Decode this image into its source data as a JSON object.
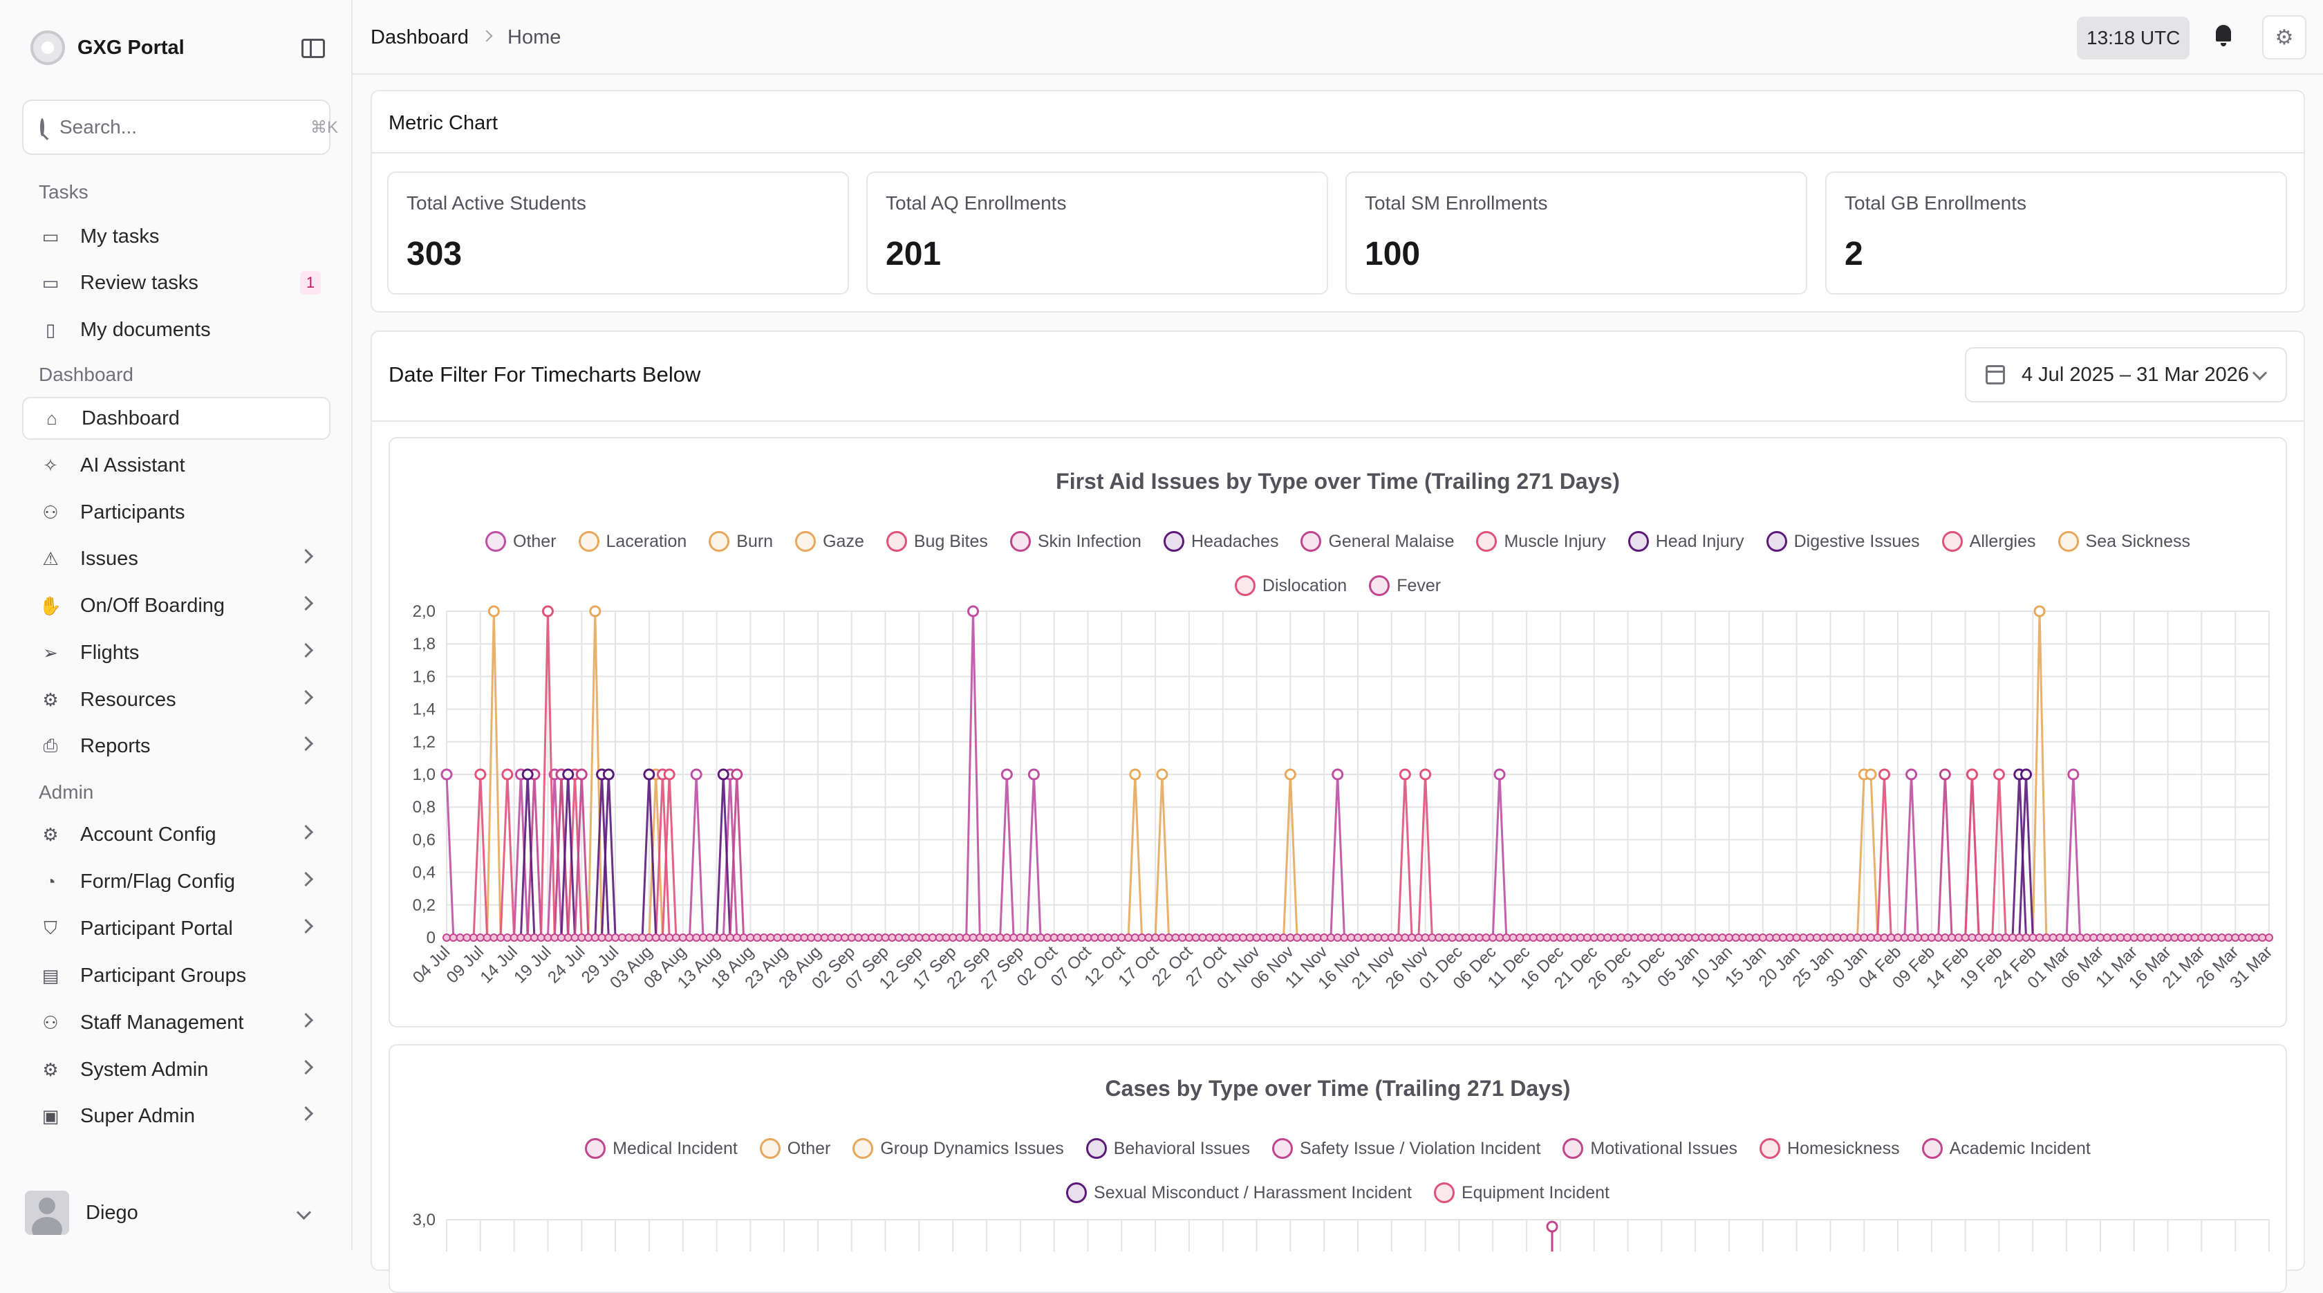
{
  "brand": {
    "name": "GXG Portal"
  },
  "search": {
    "placeholder": "Search...",
    "shortcut": "⌘K"
  },
  "sidebar": {
    "sections": {
      "tasks": "Tasks",
      "dashboard": "Dashboard",
      "admin": "Admin"
    },
    "tasks": [
      {
        "label": "My tasks",
        "icon": "clipboard-icon"
      },
      {
        "label": "Review tasks",
        "icon": "clipboard-check-icon",
        "badge": "1"
      },
      {
        "label": "My documents",
        "icon": "document-icon"
      }
    ],
    "dashboard": [
      {
        "label": "Dashboard",
        "icon": "home-icon",
        "active": true
      },
      {
        "label": "AI Assistant",
        "icon": "sparkles-icon"
      },
      {
        "label": "Participants",
        "icon": "users-icon"
      },
      {
        "label": "Issues",
        "icon": "warning-icon",
        "chevron": true
      },
      {
        "label": "On/Off Boarding",
        "icon": "hand-icon",
        "chevron": true
      },
      {
        "label": "Flights",
        "icon": "send-icon",
        "chevron": true
      },
      {
        "label": "Resources",
        "icon": "gear-icon",
        "chevron": true
      },
      {
        "label": "Reports",
        "icon": "printer-icon",
        "chevron": true
      }
    ],
    "admin": [
      {
        "label": "Account Config",
        "icon": "gear-icon",
        "chevron": true
      },
      {
        "label": "Form/Flag Config",
        "icon": "cookie-icon",
        "chevron": true
      },
      {
        "label": "Participant Portal",
        "icon": "shield-icon",
        "chevron": true
      },
      {
        "label": "Participant Groups",
        "icon": "groups-icon"
      },
      {
        "label": "Staff Management",
        "icon": "users-icon",
        "chevron": true
      },
      {
        "label": "System Admin",
        "icon": "gear-icon",
        "chevron": true
      },
      {
        "label": "Super Admin",
        "icon": "terminal-icon",
        "chevron": true
      }
    ],
    "user": {
      "name": "Diego"
    }
  },
  "header": {
    "breadcrumb": [
      "Dashboard",
      "Home"
    ],
    "clock": "13:18 UTC"
  },
  "metrics": {
    "title": "Metric Chart",
    "cards": [
      {
        "label": "Total Active Students",
        "value": "303"
      },
      {
        "label": "Total AQ Enrollments",
        "value": "201"
      },
      {
        "label": "Total SM Enrollments",
        "value": "100"
      },
      {
        "label": "Total GB Enrollments",
        "value": "2"
      }
    ]
  },
  "date_filter": {
    "title": "Date Filter For Timecharts Below",
    "range": "4 Jul 2025 – 31 Mar 2026"
  },
  "chart_data": [
    {
      "type": "line",
      "title": "First Aid Issues by Type over Time (Trailing 271 Days)",
      "legend_placement": "top",
      "ylim": [
        0,
        2
      ],
      "yticks": [
        "0",
        "0,2",
        "0,4",
        "0,6",
        "0,8",
        "1,0",
        "1,2",
        "1,4",
        "1,6",
        "1,8",
        "2,0"
      ],
      "x_tick_labels": [
        "04 Jul",
        "09 Jul",
        "14 Jul",
        "19 Jul",
        "24 Jul",
        "29 Jul",
        "03 Aug",
        "08 Aug",
        "13 Aug",
        "18 Aug",
        "23 Aug",
        "28 Aug",
        "02 Sep",
        "07 Sep",
        "12 Sep",
        "17 Sep",
        "22 Sep",
        "27 Sep",
        "02 Oct",
        "07 Oct",
        "12 Oct",
        "17 Oct",
        "22 Oct",
        "27 Oct",
        "01 Nov",
        "06 Nov",
        "11 Nov",
        "16 Nov",
        "21 Nov",
        "26 Nov",
        "01 Dec",
        "06 Dec",
        "11 Dec",
        "16 Dec",
        "21 Dec",
        "26 Dec",
        "31 Dec",
        "05 Jan",
        "10 Jan",
        "15 Jan",
        "20 Jan",
        "25 Jan",
        "30 Jan",
        "04 Feb",
        "09 Feb",
        "14 Feb",
        "19 Feb",
        "24 Feb",
        "01 Mar",
        "06 Mar",
        "11 Mar",
        "16 Mar",
        "21 Mar",
        "26 Mar",
        "31 Mar"
      ],
      "x_range": [
        "2025-07-04",
        "2026-03-31"
      ],
      "grid": true,
      "series": [
        {
          "name": "Other",
          "color": "#be4fa3",
          "points": [
            [
              "2025-07-04",
              1
            ],
            [
              "2025-07-15",
              1
            ],
            [
              "2025-07-20",
              1
            ],
            [
              "2025-08-10",
              1
            ],
            [
              "2025-08-15",
              1
            ],
            [
              "2025-09-20",
              2
            ],
            [
              "2025-09-25",
              1
            ],
            [
              "2025-09-29",
              1
            ],
            [
              "2025-11-13",
              1
            ],
            [
              "2025-12-07",
              1
            ],
            [
              "2026-02-06",
              1
            ],
            [
              "2026-02-15",
              1
            ],
            [
              "2026-03-02",
              1
            ]
          ]
        },
        {
          "name": "Laceration",
          "color": "#e8a85c",
          "points": [
            [
              "2025-07-11",
              2
            ],
            [
              "2025-07-26",
              2
            ],
            [
              "2025-10-14",
              1
            ],
            [
              "2025-10-18",
              1
            ],
            [
              "2025-11-06",
              1
            ]
          ]
        },
        {
          "name": "Burn",
          "color": "#e8a85c",
          "points": [
            [
              "2026-01-30",
              1
            ],
            [
              "2026-01-31",
              1
            ],
            [
              "2026-02-25",
              2
            ]
          ]
        },
        {
          "name": "Gaze",
          "color": "#e8a85c",
          "points": [
            [
              "2025-07-21",
              1
            ],
            [
              "2025-08-04",
              1
            ]
          ]
        },
        {
          "name": "Bug Bites",
          "color": "#e0527a",
          "points": [
            [
              "2025-07-09",
              1
            ],
            [
              "2025-07-13",
              1
            ],
            [
              "2025-07-23",
              1
            ],
            [
              "2025-08-05",
              1
            ]
          ]
        },
        {
          "name": "Skin Infection",
          "color": "#c0458d",
          "points": [
            [
              "2025-07-17",
              1
            ],
            [
              "2025-07-21",
              1
            ]
          ]
        },
        {
          "name": "Headaches",
          "color": "#5b1a7a",
          "points": [
            [
              "2025-07-16",
              1
            ],
            [
              "2025-07-27",
              1
            ],
            [
              "2025-08-03",
              1
            ],
            [
              "2025-08-14",
              1
            ]
          ]
        },
        {
          "name": "General Malaise",
          "color": "#c0458d",
          "points": [
            [
              "2025-08-16",
              1
            ],
            [
              "2026-02-11",
              1
            ]
          ]
        },
        {
          "name": "Muscle Injury",
          "color": "#e0527a",
          "points": [
            [
              "2025-07-19",
              2
            ],
            [
              "2025-11-23",
              1
            ],
            [
              "2025-11-26",
              1
            ],
            [
              "2026-02-02",
              1
            ]
          ]
        },
        {
          "name": "Head Injury",
          "color": "#5b1a7a",
          "points": [
            [
              "2025-07-28",
              1
            ],
            [
              "2026-02-22",
              1
            ]
          ]
        },
        {
          "name": "Digestive Issues",
          "color": "#5b1a7a",
          "points": [
            [
              "2025-07-22",
              1
            ],
            [
              "2026-02-23",
              1
            ]
          ]
        },
        {
          "name": "Allergies",
          "color": "#e0527a",
          "points": [
            [
              "2025-08-06",
              1
            ],
            [
              "2026-02-15",
              1
            ]
          ]
        },
        {
          "name": "Sea Sickness",
          "color": "#e8a85c",
          "points": []
        },
        {
          "name": "Dislocation",
          "color": "#e0527a",
          "points": [
            [
              "2026-02-19",
              1
            ]
          ]
        },
        {
          "name": "Fever",
          "color": "#c0458d",
          "points": [
            [
              "2025-07-24",
              1
            ]
          ]
        }
      ]
    },
    {
      "type": "line",
      "title": "Cases by Type over Time (Trailing 271 Days)",
      "legend_placement": "top",
      "ylim": [
        0,
        3
      ],
      "yticks": [
        "3,0"
      ],
      "grid": true,
      "series": [
        {
          "name": "Medical Incident",
          "color": "#c0458d"
        },
        {
          "name": "Other",
          "color": "#e8a85c"
        },
        {
          "name": "Group Dynamics Issues",
          "color": "#e8a85c"
        },
        {
          "name": "Behavioral Issues",
          "color": "#5b1a7a"
        },
        {
          "name": "Safety Issue / Violation Incident",
          "color": "#c0458d"
        },
        {
          "name": "Motivational Issues",
          "color": "#c0458d"
        },
        {
          "name": "Homesickness",
          "color": "#e0527a"
        },
        {
          "name": "Academic Incident",
          "color": "#c0458d"
        },
        {
          "name": "Sexual Misconduct / Harassment Incident",
          "color": "#5b1a7a"
        },
        {
          "name": "Equipment Incident",
          "color": "#e0527a"
        }
      ]
    }
  ]
}
